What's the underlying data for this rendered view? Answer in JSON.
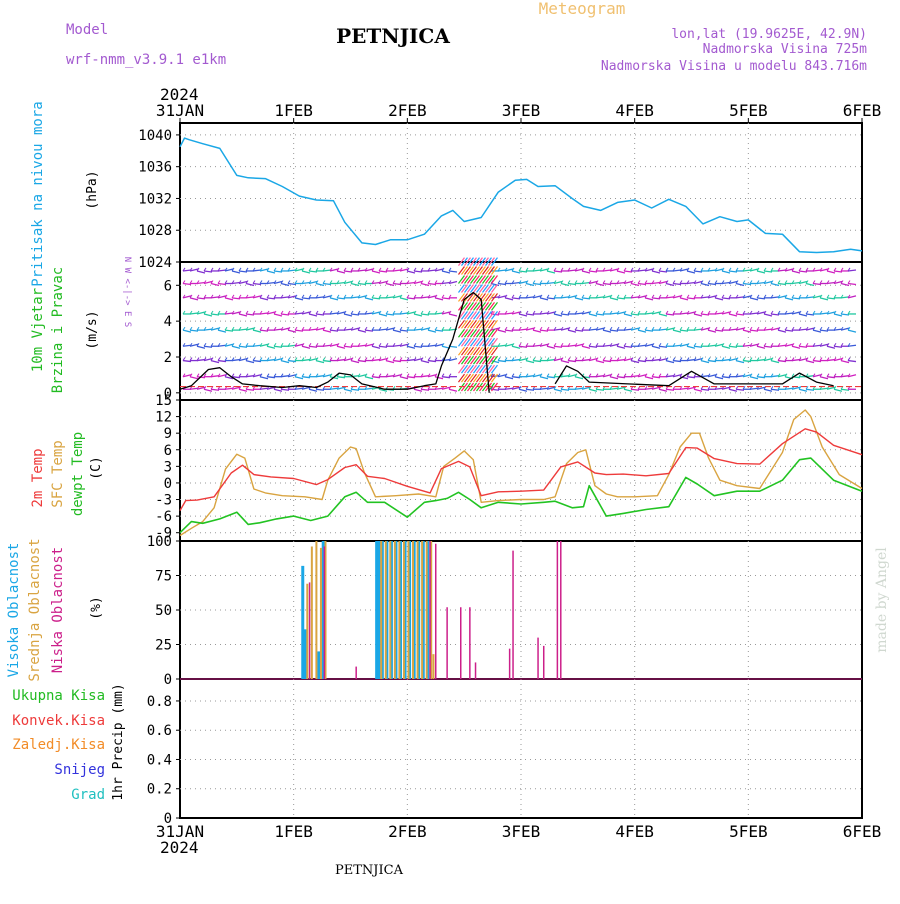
{
  "header": {
    "model_label": "Model",
    "model_value": "wrf-nmm_v3.9.1 e1km",
    "station": "PETNJICA",
    "title": "Meteogram",
    "lonlat": "lon,lat (19.9625E, 42.9N)",
    "elevation": "Nadmorska Visina 725m",
    "model_elevation": "Nadmorska Visina u modelu 843.716m",
    "footer_station": "PETNJICA",
    "credit": "made by Angel"
  },
  "colors": {
    "pressure": "#1aa7e6",
    "t2m": "#ee3b3b",
    "sfc": "#d9a441",
    "dew": "#22c322",
    "high_cloud": "#1aa7e6",
    "mid_cloud": "#d9a441",
    "low_cloud": "#cc1f8a",
    "wind_label_green": "#22bb22",
    "precip_total": "#22bb22",
    "precip_conv": "#ee3b3b",
    "precip_frz": "#f28c28",
    "precip_snow": "#3333dd",
    "precip_grad": "#20c0c0",
    "meta": "#a35ad0",
    "title_orange": "#f0c070"
  },
  "time_axis": {
    "year": "2024",
    "labels": [
      "31JAN",
      "1FEB",
      "2FEB",
      "3FEB",
      "4FEB",
      "5FEB",
      "6FEB"
    ]
  },
  "chart_data": [
    {
      "type": "line",
      "panel": "pressure",
      "ylabel": "(hPa)",
      "side_label": "Pritisak na nivou mora",
      "yticks": [
        1024,
        1028,
        1032,
        1036,
        1040
      ],
      "ylim": [
        1024,
        1041.5
      ],
      "xlim": [
        0,
        6
      ],
      "series": [
        {
          "x": [
            0,
            0.04,
            0.08,
            0.2,
            0.35,
            0.5,
            0.6,
            0.75,
            0.9,
            1.05,
            1.2,
            1.35,
            1.45,
            1.6,
            1.72,
            1.85,
            2.0,
            2.15,
            2.3,
            2.4,
            2.5,
            2.65,
            2.8,
            2.95,
            3.05,
            3.15,
            3.3,
            3.45,
            3.55,
            3.7,
            3.85,
            4.0,
            4.15,
            4.3,
            4.45,
            4.6,
            4.75,
            4.9,
            5.0,
            5.15,
            5.3,
            5.45,
            5.6,
            5.75,
            5.9,
            6.0
          ],
          "values": [
            1038.5,
            1039.6,
            1039.4,
            1038.9,
            1038.3,
            1034.9,
            1034.6,
            1034.5,
            1033.5,
            1032.3,
            1031.8,
            1031.7,
            1029.0,
            1026.4,
            1026.2,
            1026.8,
            1026.8,
            1027.5,
            1029.8,
            1030.5,
            1029.1,
            1029.6,
            1032.8,
            1034.3,
            1034.4,
            1033.5,
            1033.6,
            1032.0,
            1031.0,
            1030.5,
            1031.5,
            1031.8,
            1030.8,
            1031.9,
            1031.0,
            1028.8,
            1029.7,
            1029.1,
            1029.3,
            1027.6,
            1027.5,
            1025.3,
            1025.2,
            1025.3,
            1025.6,
            1025.4
          ]
        }
      ]
    },
    {
      "type": "line",
      "panel": "wind",
      "ylabel": "(m/s)",
      "side_label_1": "10m Vjetar",
      "side_label_2": "Brzina i Pravac",
      "compass": "N  W <-|-> E  S",
      "yticks": [
        0,
        2,
        4,
        6
      ],
      "ylim": [
        -0.4,
        7.3
      ],
      "xlim": [
        0,
        6
      ],
      "series": [
        {
          "name": "speed",
          "x": [
            0,
            0.1,
            0.25,
            0.35,
            0.45,
            0.55,
            0.7,
            0.9,
            1.05,
            1.2,
            1.3,
            1.4,
            1.5,
            1.6,
            1.8,
            2.0,
            2.15,
            2.25,
            2.3,
            2.4,
            2.5,
            2.58,
            2.65,
            2.72
          ],
          "values": [
            0.2,
            0.4,
            1.3,
            1.4,
            0.9,
            0.5,
            0.4,
            0.3,
            0.4,
            0.3,
            0.6,
            1.1,
            1.0,
            0.5,
            0.2,
            0.2,
            0.4,
            0.5,
            1.5,
            3.0,
            5.2,
            5.6,
            5.2,
            0.0
          ]
        },
        {
          "name": "speed-later",
          "x": [
            3.3,
            3.4,
            3.5,
            3.6,
            4.3,
            4.5,
            4.7,
            5.3,
            5.45,
            5.6,
            5.75
          ],
          "values": [
            0.5,
            1.5,
            1.2,
            0.6,
            0.4,
            1.2,
            0.5,
            0.5,
            1.1,
            0.6,
            0.4
          ]
        }
      ]
    },
    {
      "type": "line",
      "panel": "temperature",
      "ylabel": "(C)",
      "side_label_1": "2m Temp",
      "side_label_2": "SFC Temp",
      "side_label_3": "dewpt Temp",
      "yticks": [
        -9,
        -6,
        -3,
        0,
        3,
        6,
        9,
        12,
        15
      ],
      "ylim": [
        -10.5,
        15
      ],
      "xlim": [
        0,
        6
      ],
      "series": [
        {
          "name": "2m Temp",
          "x": [
            0,
            0.05,
            0.15,
            0.3,
            0.45,
            0.55,
            0.65,
            0.8,
            1.0,
            1.2,
            1.3,
            1.45,
            1.55,
            1.65,
            1.8,
            2.0,
            2.2,
            2.3,
            2.45,
            2.55,
            2.65,
            2.8,
            3.0,
            3.2,
            3.35,
            3.5,
            3.65,
            3.75,
            3.9,
            4.1,
            4.3,
            4.45,
            4.55,
            4.7,
            4.9,
            5.1,
            5.3,
            5.5,
            5.6,
            5.75,
            6.0
          ],
          "values": [
            -5,
            -3.2,
            -3.1,
            -2.5,
            1.8,
            3.2,
            1.5,
            1.1,
            0.8,
            -0.3,
            0.6,
            2.8,
            3.3,
            1.2,
            0.8,
            -0.6,
            -1.8,
            2.6,
            3.9,
            2.9,
            -2.3,
            -1.6,
            -1.5,
            -1.3,
            2.9,
            3.8,
            1.8,
            1.5,
            1.6,
            1.3,
            1.7,
            6.4,
            6.3,
            4.4,
            3.5,
            3.4,
            7.1,
            9.8,
            9.2,
            6.8,
            5.1
          ]
        },
        {
          "name": "SFC Temp",
          "x": [
            0,
            0.1,
            0.2,
            0.3,
            0.4,
            0.5,
            0.57,
            0.65,
            0.75,
            0.9,
            1.1,
            1.25,
            1.3,
            1.4,
            1.5,
            1.55,
            1.62,
            1.72,
            1.9,
            2.1,
            2.25,
            2.32,
            2.42,
            2.5,
            2.58,
            2.65,
            2.8,
            3.0,
            3.2,
            3.3,
            3.4,
            3.5,
            3.57,
            3.65,
            3.75,
            3.85,
            4.0,
            4.2,
            4.3,
            4.4,
            4.5,
            4.57,
            4.65,
            4.75,
            4.9,
            5.1,
            5.3,
            5.4,
            5.5,
            5.55,
            5.65,
            5.8,
            6.0
          ],
          "values": [
            -9.5,
            -8.2,
            -7.0,
            -4.5,
            2.5,
            5.2,
            4.5,
            -1.1,
            -1.8,
            -2.3,
            -2.5,
            -3.0,
            0.5,
            4.5,
            6.5,
            6.2,
            2.0,
            -2.5,
            -2.3,
            -2.0,
            -2.5,
            3.0,
            4.5,
            5.8,
            4.2,
            -3.5,
            -3.2,
            -3.0,
            -3.0,
            -2.5,
            3.5,
            5.5,
            6.0,
            -0.5,
            -2.0,
            -2.5,
            -2.5,
            -2.3,
            1.5,
            6.5,
            9.0,
            9.0,
            4.5,
            0.5,
            -0.5,
            -1.0,
            5.5,
            11.5,
            13.2,
            12.0,
            6.5,
            1.5,
            -1.0
          ]
        },
        {
          "name": "dewpt Temp",
          "x": [
            0,
            0.1,
            0.2,
            0.35,
            0.5,
            0.6,
            0.7,
            0.85,
            1.0,
            1.15,
            1.3,
            1.45,
            1.55,
            1.65,
            1.8,
            2.0,
            2.15,
            2.25,
            2.35,
            2.45,
            2.55,
            2.65,
            2.8,
            3.0,
            3.2,
            3.3,
            3.45,
            3.55,
            3.6,
            3.75,
            3.9,
            4.1,
            4.3,
            4.45,
            4.55,
            4.7,
            4.9,
            5.1,
            5.3,
            5.45,
            5.55,
            5.75,
            6.0
          ],
          "values": [
            -9,
            -7.0,
            -7.3,
            -6.5,
            -5.3,
            -7.5,
            -7.2,
            -6.5,
            -6.0,
            -6.8,
            -6.0,
            -2.5,
            -1.7,
            -3.5,
            -3.5,
            -6.2,
            -3.5,
            -3.2,
            -2.8,
            -1.7,
            -3.0,
            -4.5,
            -3.5,
            -3.8,
            -3.5,
            -3.3,
            -4.5,
            -4.3,
            -0.5,
            -6.0,
            -5.5,
            -4.8,
            -4.3,
            1.0,
            -0.2,
            -2.3,
            -1.5,
            -1.5,
            0.5,
            4.2,
            4.5,
            0.5,
            -1.5
          ]
        }
      ]
    },
    {
      "type": "bar",
      "panel": "clouds",
      "ylabel": "(%)",
      "side_label_1": "Visoka Oblacnost",
      "side_label_2": "Srednja Oblacnost",
      "side_label_3": "Niska Oblacnost",
      "yticks": [
        0,
        25,
        50,
        75,
        100
      ],
      "ylim": [
        0,
        100
      ],
      "xlim": [
        0,
        6
      ],
      "series": [
        {
          "name": "Visoka Oblacnost",
          "x": [
            1.08,
            1.1,
            1.22,
            1.26,
            1.73,
            1.75,
            1.78,
            1.82,
            1.86,
            1.9,
            1.94,
            1.98,
            2.02,
            2.06,
            2.1,
            2.14,
            2.18
          ],
          "values": [
            82,
            36,
            20,
            100,
            100,
            100,
            100,
            100,
            100,
            100,
            100,
            100,
            100,
            100,
            100,
            100,
            100
          ]
        },
        {
          "name": "Srednja Oblacnost",
          "x": [
            1.12,
            1.16,
            1.2,
            1.24,
            1.28,
            1.77,
            1.81,
            1.85,
            1.89,
            1.93,
            1.97,
            2.01,
            2.05,
            2.09,
            2.13,
            2.17,
            2.21,
            2.23
          ],
          "values": [
            69,
            96,
            100,
            95,
            100,
            100,
            100,
            100,
            100,
            100,
            100,
            100,
            100,
            100,
            100,
            100,
            100,
            18
          ]
        },
        {
          "name": "Niska Oblacnost",
          "x": [
            1.14,
            1.27,
            1.55,
            2.2,
            2.25,
            2.35,
            2.47,
            2.55,
            2.6,
            2.9,
            2.93,
            3.15,
            3.2,
            3.32,
            3.35
          ],
          "values": [
            70,
            96,
            9,
            100,
            98,
            52,
            52,
            52,
            12,
            22,
            93,
            30,
            24,
            100,
            100
          ]
        }
      ]
    },
    {
      "type": "bar",
      "panel": "precip",
      "ylabel": "1hr Precip (mm)",
      "side_labels": [
        "Ukupna Kisa",
        "Konvek.Kisa",
        "Zaledj.Kisa",
        "Snijeg",
        "Grad"
      ],
      "yticks": [
        "0",
        "0.2",
        "0.4",
        "0.6",
        "0.8"
      ],
      "ylim": [
        0,
        0.95
      ],
      "xlim": [
        0,
        6
      ],
      "series": []
    }
  ]
}
